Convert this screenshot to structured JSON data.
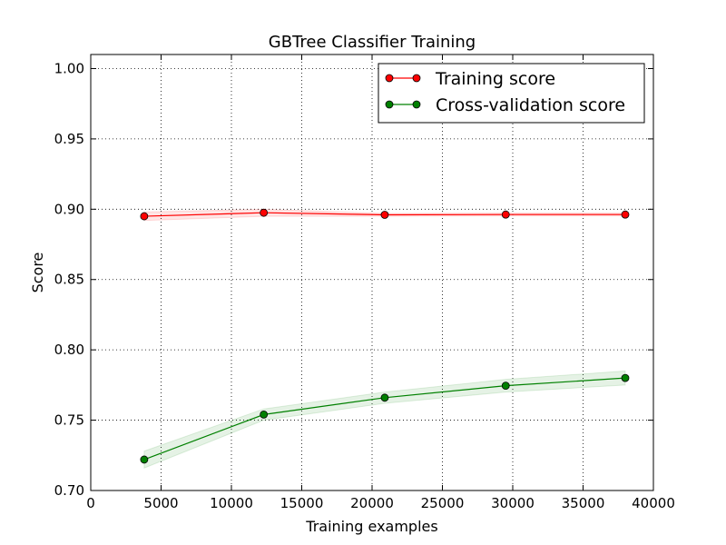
{
  "chart_data": {
    "type": "line",
    "title": "GBTree Classifier Training",
    "xlabel": "Training examples",
    "ylabel": "Score",
    "xlim": [
      0,
      40000
    ],
    "ylim": [
      0.7,
      1.01
    ],
    "xticks": [
      0,
      5000,
      10000,
      15000,
      20000,
      25000,
      30000,
      35000,
      40000
    ],
    "xtick_labels": [
      "0",
      "5000",
      "10000",
      "15000",
      "20000",
      "25000",
      "30000",
      "35000",
      "40000"
    ],
    "yticks": [
      0.7,
      0.75,
      0.8,
      0.85,
      0.9,
      0.95,
      1.0
    ],
    "ytick_labels": [
      "0.70",
      "0.75",
      "0.80",
      "0.85",
      "0.90",
      "0.95",
      "1.00"
    ],
    "grid": true,
    "legend_position": "top-right",
    "x": [
      3800,
      12300,
      20900,
      29500,
      38000
    ],
    "series": [
      {
        "name": "Training score",
        "color": "#ff0000",
        "band_color": "#ff0000",
        "values": [
          0.895,
          0.8975,
          0.896,
          0.8962,
          0.8962
        ],
        "band_lower": [
          0.892,
          0.895,
          0.895,
          0.8952,
          0.8952
        ],
        "band_upper": [
          0.898,
          0.9,
          0.897,
          0.8972,
          0.8972
        ]
      },
      {
        "name": "Cross-validation score",
        "color": "#008000",
        "band_color": "#008000",
        "values": [
          0.722,
          0.754,
          0.766,
          0.7745,
          0.78
        ],
        "band_lower": [
          0.716,
          0.75,
          0.762,
          0.77,
          0.775
        ],
        "band_upper": [
          0.728,
          0.758,
          0.77,
          0.779,
          0.785
        ]
      }
    ]
  }
}
